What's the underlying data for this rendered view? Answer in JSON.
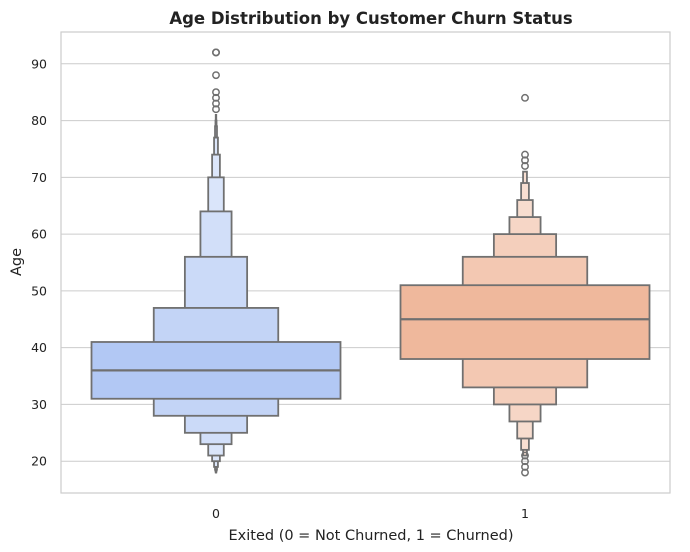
{
  "chart_data": {
    "type": "boxen",
    "title": "Age Distribution by Customer Churn Status",
    "xlabel": "Exited (0 = Not Churned, 1 = Churned)",
    "ylabel": "Age",
    "categories": [
      "0",
      "1"
    ],
    "ylim": [
      14.4,
      95.6
    ],
    "yticks": [
      20,
      30,
      40,
      50,
      60,
      70,
      80,
      90
    ],
    "grid": true,
    "series": [
      {
        "category": "0",
        "color": "#b2c8f4",
        "median": 36,
        "levels": [
          {
            "low": 31,
            "high": 41
          },
          {
            "low": 28,
            "high": 47
          },
          {
            "low": 25,
            "high": 56
          },
          {
            "low": 23,
            "high": 64
          },
          {
            "low": 21,
            "high": 70
          },
          {
            "low": 20,
            "high": 74
          },
          {
            "low": 19,
            "high": 77
          },
          {
            "low": 18.5,
            "high": 79
          },
          {
            "low": 18.2,
            "high": 80
          },
          {
            "low": 18,
            "high": 81
          }
        ],
        "outliers": [
          82,
          83,
          84,
          85,
          88,
          92,
          92
        ]
      },
      {
        "category": "1",
        "color": "#efb89c",
        "median": 45,
        "levels": [
          {
            "low": 38,
            "high": 51
          },
          {
            "low": 33,
            "high": 56
          },
          {
            "low": 30,
            "high": 60
          },
          {
            "low": 27,
            "high": 63
          },
          {
            "low": 24,
            "high": 66
          },
          {
            "low": 22,
            "high": 69
          },
          {
            "low": 21,
            "high": 71
          }
        ],
        "outliers": [
          72,
          73,
          74,
          84,
          21,
          20,
          19,
          18
        ]
      }
    ]
  }
}
